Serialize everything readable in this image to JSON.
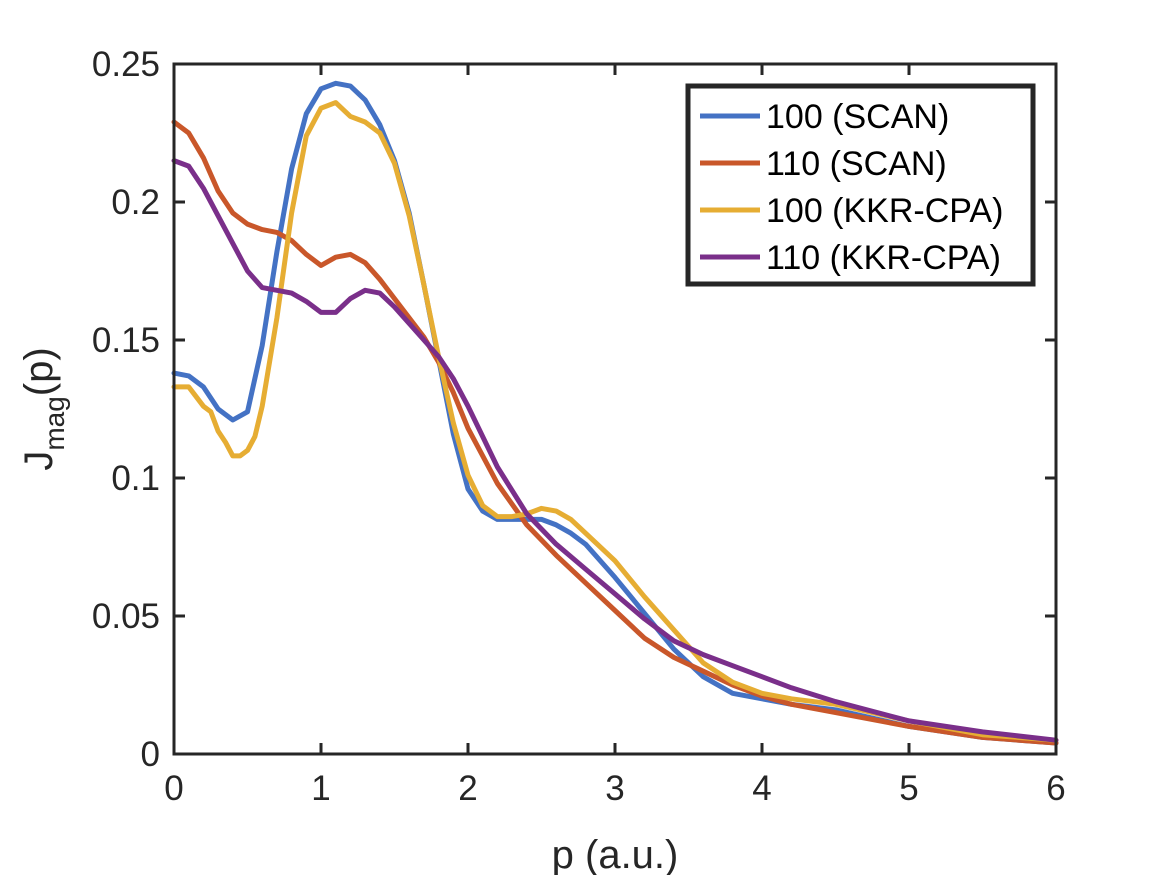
{
  "chart_data": {
    "type": "line",
    "title": "",
    "xlabel": "p (a.u.)",
    "ylabel": {
      "main": "J",
      "sub": "mag",
      "suffix": "(p)"
    },
    "xlim": [
      0,
      6
    ],
    "ylim": [
      0,
      0.25
    ],
    "xticks": [
      0,
      1,
      2,
      3,
      4,
      5,
      6
    ],
    "xtick_labels": [
      "0",
      "1",
      "2",
      "3",
      "4",
      "5",
      "6"
    ],
    "yticks": [
      0,
      0.05,
      0.1,
      0.15,
      0.2,
      0.25
    ],
    "ytick_labels": [
      "0",
      "0.05",
      "0.1",
      "0.15",
      "0.2",
      "0.25"
    ],
    "grid": false,
    "legend_position": "top-right",
    "series": [
      {
        "name": "100 (SCAN)",
        "color": "#4472c4",
        "x": [
          0,
          0.1,
          0.2,
          0.3,
          0.4,
          0.5,
          0.6,
          0.7,
          0.8,
          0.9,
          1.0,
          1.1,
          1.2,
          1.3,
          1.4,
          1.5,
          1.6,
          1.7,
          1.8,
          1.9,
          2.0,
          2.1,
          2.2,
          2.3,
          2.4,
          2.5,
          2.6,
          2.7,
          2.8,
          3.0,
          3.2,
          3.4,
          3.6,
          3.8,
          4.0,
          4.2,
          4.5,
          5.0,
          5.5,
          6.0
        ],
        "y": [
          0.138,
          0.137,
          0.133,
          0.125,
          0.121,
          0.124,
          0.148,
          0.182,
          0.212,
          0.232,
          0.241,
          0.243,
          0.242,
          0.237,
          0.228,
          0.215,
          0.196,
          0.17,
          0.143,
          0.116,
          0.096,
          0.088,
          0.085,
          0.085,
          0.085,
          0.085,
          0.083,
          0.08,
          0.076,
          0.064,
          0.051,
          0.038,
          0.028,
          0.022,
          0.02,
          0.018,
          0.016,
          0.01,
          0.006,
          0.004
        ]
      },
      {
        "name": "110 (SCAN)",
        "color": "#c9572a",
        "x": [
          0,
          0.1,
          0.2,
          0.3,
          0.4,
          0.5,
          0.6,
          0.7,
          0.8,
          0.9,
          1.0,
          1.1,
          1.2,
          1.3,
          1.4,
          1.5,
          1.6,
          1.7,
          1.8,
          1.9,
          2.0,
          2.2,
          2.4,
          2.6,
          2.8,
          3.0,
          3.2,
          3.4,
          3.6,
          3.8,
          4.0,
          4.2,
          4.5,
          5.0,
          5.5,
          6.0
        ],
        "y": [
          0.229,
          0.225,
          0.216,
          0.204,
          0.196,
          0.192,
          0.19,
          0.189,
          0.186,
          0.181,
          0.177,
          0.18,
          0.181,
          0.178,
          0.172,
          0.165,
          0.158,
          0.151,
          0.142,
          0.131,
          0.118,
          0.098,
          0.083,
          0.072,
          0.062,
          0.052,
          0.042,
          0.035,
          0.03,
          0.025,
          0.021,
          0.018,
          0.015,
          0.01,
          0.006,
          0.004
        ]
      },
      {
        "name": "100 (KKR-CPA)",
        "color": "#e6ad33",
        "x": [
          0,
          0.1,
          0.2,
          0.25,
          0.3,
          0.35,
          0.4,
          0.45,
          0.5,
          0.55,
          0.6,
          0.7,
          0.8,
          0.9,
          1.0,
          1.1,
          1.2,
          1.3,
          1.4,
          1.5,
          1.6,
          1.7,
          1.8,
          1.9,
          2.0,
          2.1,
          2.2,
          2.3,
          2.4,
          2.5,
          2.6,
          2.7,
          2.8,
          3.0,
          3.2,
          3.4,
          3.6,
          3.8,
          4.0,
          4.2,
          4.5,
          5.0,
          5.5,
          6.0
        ],
        "y": [
          0.133,
          0.133,
          0.126,
          0.124,
          0.117,
          0.113,
          0.108,
          0.108,
          0.11,
          0.115,
          0.126,
          0.158,
          0.196,
          0.224,
          0.234,
          0.236,
          0.231,
          0.229,
          0.225,
          0.214,
          0.195,
          0.17,
          0.144,
          0.12,
          0.101,
          0.09,
          0.086,
          0.086,
          0.087,
          0.089,
          0.088,
          0.085,
          0.08,
          0.07,
          0.057,
          0.045,
          0.033,
          0.026,
          0.022,
          0.02,
          0.018,
          0.012,
          0.007,
          0.005
        ]
      },
      {
        "name": "110 (KKR-CPA)",
        "color": "#7a2f8a",
        "x": [
          0,
          0.1,
          0.2,
          0.3,
          0.4,
          0.5,
          0.6,
          0.7,
          0.8,
          0.9,
          1.0,
          1.1,
          1.2,
          1.3,
          1.4,
          1.5,
          1.6,
          1.7,
          1.8,
          1.9,
          2.0,
          2.2,
          2.4,
          2.6,
          2.8,
          3.0,
          3.2,
          3.4,
          3.6,
          3.8,
          4.0,
          4.2,
          4.5,
          5.0,
          5.5,
          6.0
        ],
        "y": [
          0.215,
          0.213,
          0.205,
          0.195,
          0.185,
          0.175,
          0.169,
          0.168,
          0.167,
          0.164,
          0.16,
          0.16,
          0.165,
          0.168,
          0.167,
          0.162,
          0.156,
          0.15,
          0.144,
          0.136,
          0.126,
          0.104,
          0.087,
          0.076,
          0.067,
          0.058,
          0.049,
          0.041,
          0.036,
          0.032,
          0.028,
          0.024,
          0.019,
          0.012,
          0.008,
          0.005
        ]
      }
    ]
  }
}
